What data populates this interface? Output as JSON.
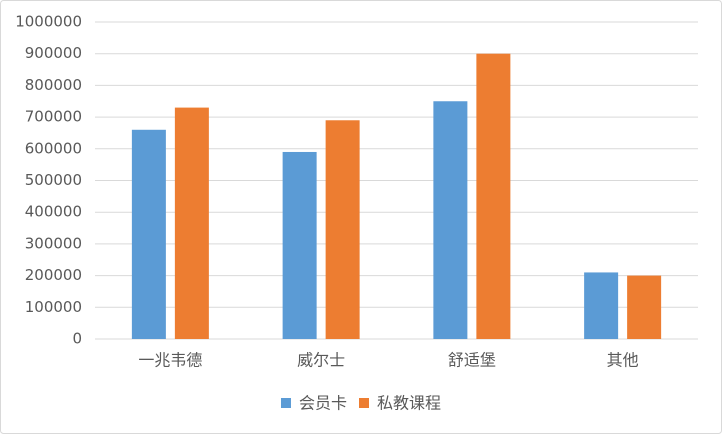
{
  "chart_data": {
    "type": "bar",
    "categories": [
      "一兆韦德",
      "威尔士",
      "舒适堡",
      "其他"
    ],
    "series": [
      {
        "name": "会员卡",
        "color": "#5b9bd5",
        "values": [
          660000,
          590000,
          750000,
          210000
        ]
      },
      {
        "name": "私教课程",
        "color": "#ed7d31",
        "values": [
          730000,
          690000,
          900000,
          200000
        ]
      }
    ],
    "ylim": [
      0,
      1000000
    ],
    "yticks": [
      0,
      100000,
      200000,
      300000,
      400000,
      500000,
      600000,
      700000,
      800000,
      900000,
      1000000
    ],
    "grid": true,
    "legend": "bottom"
  }
}
